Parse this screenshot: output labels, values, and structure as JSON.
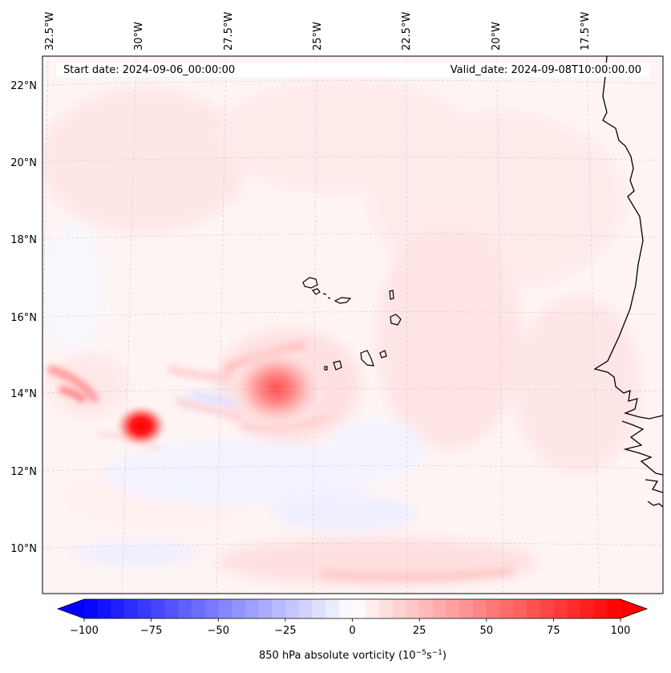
{
  "header": {
    "start_date": "Start date: 2024-09-06_00:00:00",
    "valid_date": "Valid_date: 2024-09-08T10:00:00.00"
  },
  "map": {
    "lon_labels": [
      "32.5°W",
      "30°W",
      "27.5°W",
      "25°W",
      "22.5°W",
      "20°W",
      "17.5°W"
    ],
    "lat_labels": [
      "22°N",
      "20°N",
      "18°N",
      "16°N",
      "14°N",
      "12°N",
      "10°N"
    ],
    "gridlines": "dashed",
    "field": "850 hPa absolute vorticity",
    "features": [
      {
        "name": "vortex-west",
        "lon": -30.4,
        "lat": 13.2,
        "max_value": 100
      },
      {
        "name": "vortex-central",
        "lon": -25.3,
        "lat": 14.2,
        "max_value": 55
      },
      {
        "name": "cabo-verde-islands",
        "lon": -23.5,
        "lat": 16.0
      }
    ]
  },
  "colorbar": {
    "ticks": [
      "−100",
      "−75",
      "−50",
      "−25",
      "0",
      "25",
      "50",
      "75",
      "100"
    ],
    "tick_values": [
      -100,
      -75,
      -50,
      -25,
      0,
      25,
      50,
      75,
      100
    ],
    "range": [
      -100,
      100
    ],
    "extend": "both",
    "colormap": "bwr",
    "label_main": "850 hPa absolute vorticity (10",
    "label_exp1": "−5",
    "label_mid": "s",
    "label_exp2": "−1",
    "label_end": ")",
    "colors": {
      "low": "#0000ff",
      "mid": "#ffffff",
      "high": "#ff0000"
    }
  }
}
